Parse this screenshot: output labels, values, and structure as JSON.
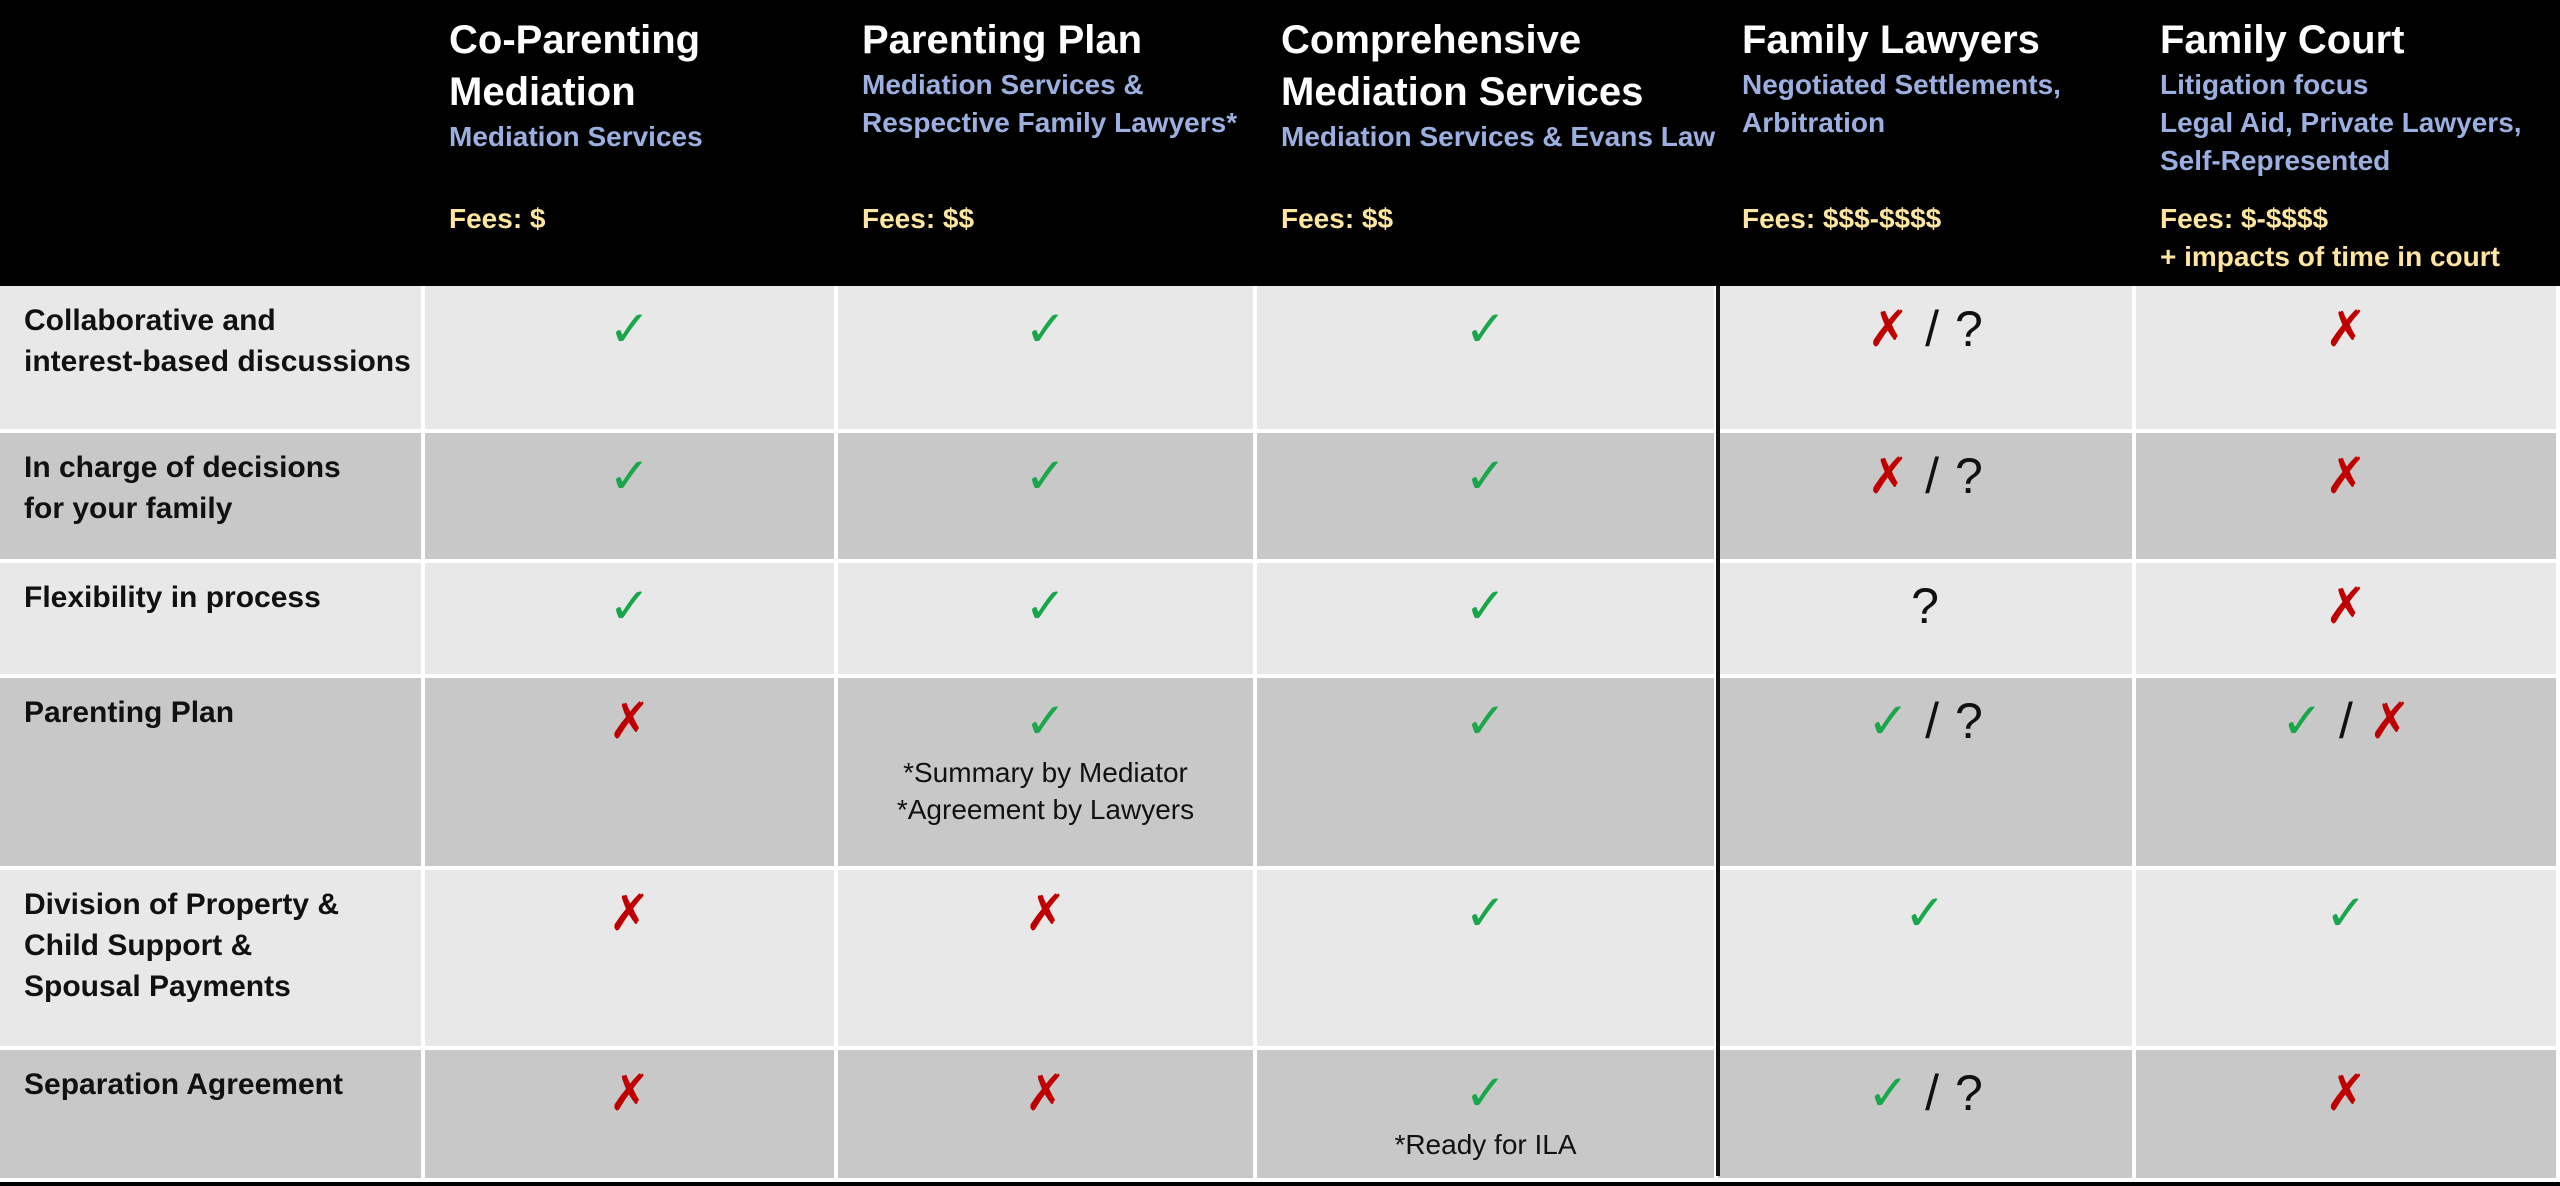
{
  "header": {
    "columns": [
      {
        "title": [
          "Co-Parenting",
          "Mediation"
        ],
        "subtitle": [
          "Mediation Services"
        ],
        "fees": [
          "Fees: $"
        ]
      },
      {
        "title": [
          "Parenting Plan"
        ],
        "subtitle": [
          "Mediation Services &",
          "Respective Family Lawyers*"
        ],
        "fees": [
          "Fees: $$"
        ]
      },
      {
        "title": [
          "Comprehensive",
          "Mediation Services"
        ],
        "subtitle": [
          "Mediation Services & Evans Law"
        ],
        "fees": [
          "Fees: $$"
        ]
      },
      {
        "title": [
          "Family Lawyers"
        ],
        "subtitle": [
          "Negotiated Settlements,",
          "Arbitration"
        ],
        "fees": [
          "Fees: $$$-$$$$"
        ]
      },
      {
        "title": [
          "Family Court"
        ],
        "subtitle": [
          "Litigation focus",
          "Legal Aid, Private Lawyers,",
          "Self-Represented"
        ],
        "fees": [
          "Fees: $-$$$$",
          "+ impacts of time in court"
        ]
      }
    ]
  },
  "table": {
    "rows": [
      {
        "label": [
          "Collaborative and",
          "interest-based discussions"
        ],
        "cells": [
          {
            "symbols": [
              {
                "text": "✓",
                "color": "#1aa64a"
              }
            ]
          },
          {
            "symbols": [
              {
                "text": "✓",
                "color": "#1aa64a"
              }
            ]
          },
          {
            "symbols": [
              {
                "text": "✓",
                "color": "#1aa64a"
              }
            ]
          },
          {
            "symbols": [
              {
                "text": "✗",
                "color": "#c00000"
              },
              {
                "text": "/",
                "color": "#111111"
              },
              {
                "text": "?",
                "color": "#111111"
              }
            ]
          },
          {
            "symbols": [
              {
                "text": "✗",
                "color": "#c00000"
              }
            ]
          }
        ]
      },
      {
        "label": [
          "In charge of decisions",
          "for your family"
        ],
        "cells": [
          {
            "symbols": [
              {
                "text": "✓",
                "color": "#1aa64a"
              }
            ]
          },
          {
            "symbols": [
              {
                "text": "✓",
                "color": "#1aa64a"
              }
            ]
          },
          {
            "symbols": [
              {
                "text": "✓",
                "color": "#1aa64a"
              }
            ]
          },
          {
            "symbols": [
              {
                "text": "✗",
                "color": "#c00000"
              },
              {
                "text": "/",
                "color": "#111111"
              },
              {
                "text": "?",
                "color": "#111111"
              }
            ]
          },
          {
            "symbols": [
              {
                "text": "✗",
                "color": "#c00000"
              }
            ]
          }
        ]
      },
      {
        "label": [
          "Flexibility in process"
        ],
        "cells": [
          {
            "symbols": [
              {
                "text": "✓",
                "color": "#1aa64a"
              }
            ]
          },
          {
            "symbols": [
              {
                "text": "✓",
                "color": "#1aa64a"
              }
            ]
          },
          {
            "symbols": [
              {
                "text": "✓",
                "color": "#1aa64a"
              }
            ]
          },
          {
            "symbols": [
              {
                "text": "?",
                "color": "#111111"
              }
            ]
          },
          {
            "symbols": [
              {
                "text": "✗",
                "color": "#c00000"
              }
            ]
          }
        ]
      },
      {
        "label": [
          "Parenting Plan"
        ],
        "cells": [
          {
            "symbols": [
              {
                "text": "✗",
                "color": "#c00000"
              }
            ]
          },
          {
            "symbols": [
              {
                "text": "✓",
                "color": "#1aa64a"
              }
            ],
            "notes": [
              "*Summary by Mediator",
              "*Agreement by Lawyers"
            ]
          },
          {
            "symbols": [
              {
                "text": "✓",
                "color": "#1aa64a"
              }
            ]
          },
          {
            "symbols": [
              {
                "text": "✓",
                "color": "#1aa64a"
              },
              {
                "text": "/",
                "color": "#111111"
              },
              {
                "text": "?",
                "color": "#111111"
              }
            ]
          },
          {
            "symbols": [
              {
                "text": "✓",
                "color": "#1aa64a"
              },
              {
                "text": "/",
                "color": "#111111"
              },
              {
                "text": "✗",
                "color": "#c00000"
              }
            ]
          }
        ]
      },
      {
        "label": [
          "Division of Property &",
          "Child Support &",
          "Spousal Payments"
        ],
        "cells": [
          {
            "symbols": [
              {
                "text": "✗",
                "color": "#c00000"
              }
            ]
          },
          {
            "symbols": [
              {
                "text": "✗",
                "color": "#c00000"
              }
            ]
          },
          {
            "symbols": [
              {
                "text": "✓",
                "color": "#1aa64a"
              }
            ]
          },
          {
            "symbols": [
              {
                "text": "✓",
                "color": "#1aa64a"
              }
            ]
          },
          {
            "symbols": [
              {
                "text": "✓",
                "color": "#1aa64a"
              }
            ]
          }
        ]
      },
      {
        "label": [
          "Separation Agreement"
        ],
        "cells": [
          {
            "symbols": [
              {
                "text": "✗",
                "color": "#c00000"
              }
            ]
          },
          {
            "symbols": [
              {
                "text": "✗",
                "color": "#c00000"
              }
            ]
          },
          {
            "symbols": [
              {
                "text": "✓",
                "color": "#1aa64a"
              }
            ],
            "notes": [
              "*Ready for ILA"
            ]
          },
          {
            "symbols": [
              {
                "text": "✓",
                "color": "#1aa64a"
              },
              {
                "text": "/",
                "color": "#111111"
              },
              {
                "text": "?",
                "color": "#111111"
              }
            ]
          },
          {
            "symbols": [
              {
                "text": "✗",
                "color": "#c00000"
              }
            ]
          }
        ]
      }
    ]
  }
}
